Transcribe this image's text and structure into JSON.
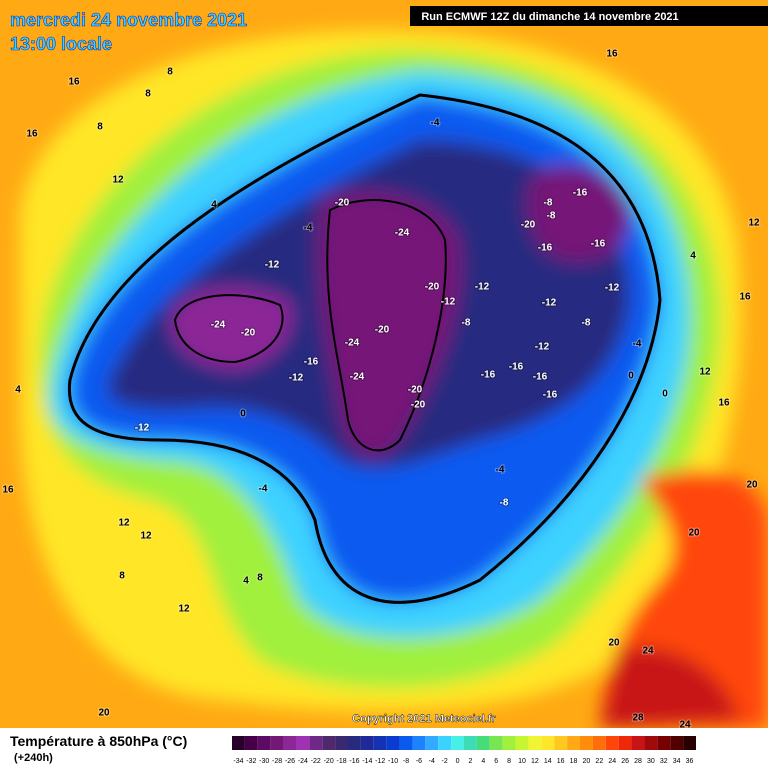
{
  "header": {
    "date": "mercredi 24 novembre 2021",
    "time": "13:00 locale",
    "run": "Run ECMWF 12Z du dimanche 14 novembre 2021"
  },
  "map": {
    "contour_labels": [
      "-24",
      "-20",
      "-24",
      "-20",
      "-24",
      "-24",
      "-20",
      "-20",
      "-20",
      "-20",
      "-16",
      "-16",
      "-16",
      "-16",
      "-16",
      "-16",
      "-16",
      "-16",
      "-20",
      "-8",
      "-8",
      "-12",
      "-12",
      "-12",
      "-12",
      "-12",
      "-12",
      "-12",
      "-12",
      "-8",
      "-8",
      "-8",
      "-4",
      "-4",
      "-4",
      "-4",
      "-4",
      "0",
      "0",
      "0",
      "4",
      "4",
      "4",
      "4",
      "8",
      "8",
      "8",
      "8",
      "8",
      "12",
      "12",
      "12",
      "12",
      "12",
      "12",
      "16",
      "16",
      "16",
      "16",
      "16",
      "16",
      "20",
      "20",
      "20",
      "20",
      "24",
      "24",
      "28"
    ],
    "copyright": "Copyright 2021 Meteociel.fr"
  },
  "legend": {
    "title": "Température à 850hPa (°C)",
    "lead": "(+240h)",
    "values": [
      -34,
      -32,
      -30,
      -28,
      -26,
      -24,
      -22,
      -20,
      -18,
      -16,
      -14,
      -12,
      -10,
      -8,
      -6,
      -4,
      -2,
      0,
      2,
      4,
      6,
      8,
      10,
      12,
      14,
      16,
      18,
      20,
      22,
      24,
      26,
      28,
      30,
      32,
      34,
      36
    ],
    "colors": [
      "#280028",
      "#46004a",
      "#5c0a64",
      "#741878",
      "#8c2896",
      "#a030b4",
      "#6e2888",
      "#50286e",
      "#3a2870",
      "#282a80",
      "#1e2a9a",
      "#1432b4",
      "#0a3cd2",
      "#0a5af0",
      "#1e82ff",
      "#32aaff",
      "#3cd2ff",
      "#46f0e6",
      "#3cdcb4",
      "#46dc78",
      "#78e650",
      "#a0f03c",
      "#c8f532",
      "#f0f532",
      "#ffe628",
      "#ffc81e",
      "#ffaa14",
      "#ff8c0a",
      "#ff6e0a",
      "#ff460a",
      "#f0280a",
      "#c81414",
      "#a00a0a",
      "#780000",
      "#500000",
      "#280000"
    ]
  }
}
